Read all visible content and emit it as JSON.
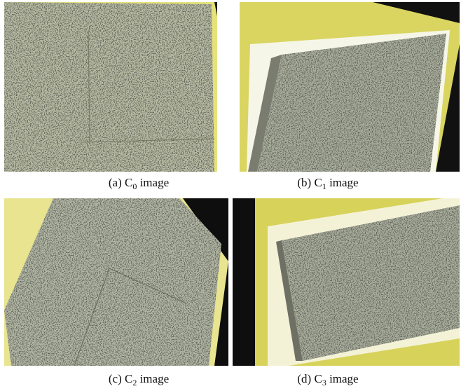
{
  "figure": {
    "panels": [
      {
        "label": "(a)",
        "symbol": "C",
        "subscript": "0",
        "suffix": "image"
      },
      {
        "label": "(b)",
        "symbol": "C",
        "subscript": "1",
        "suffix": "image"
      },
      {
        "label": "(c)",
        "symbol": "C",
        "subscript": "2",
        "suffix": "image"
      },
      {
        "label": "(d)",
        "symbol": "C",
        "subscript": "3",
        "suffix": "image"
      }
    ]
  }
}
